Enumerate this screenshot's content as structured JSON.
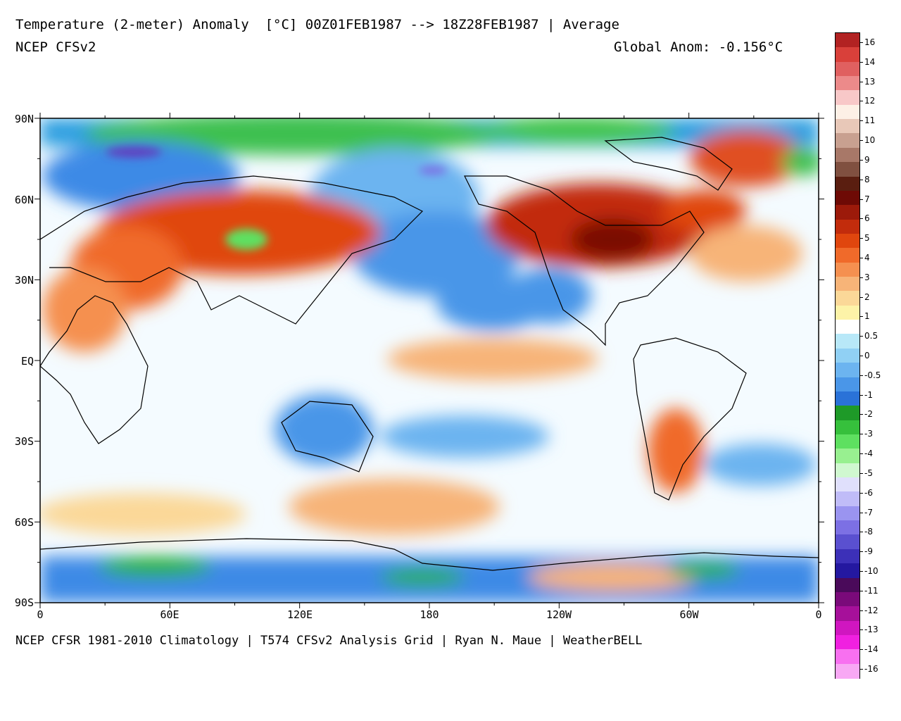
{
  "header": {
    "title": "Temperature (2-meter) Anomaly  [°C] 00Z01FEB1987 --> 18Z28FEB1987 | Average",
    "model": "NCEP CFSv2",
    "global_anom": "Global Anom: -0.156°C"
  },
  "footer": {
    "credit": "NCEP CFSR 1981-2010 Climatology | T574 CFSv2 Analysis Grid | Ryan N. Maue | WeatherBELL"
  },
  "map": {
    "lat_labels": [
      "90N",
      "60N",
      "30N",
      "EQ",
      "30S",
      "60S",
      "90S"
    ],
    "lon_labels": [
      "0",
      "60E",
      "120E",
      "180",
      "120W",
      "60W",
      "0"
    ]
  },
  "colorbar": {
    "labels": [
      "16",
      "14",
      "13",
      "12",
      "11",
      "10",
      "9",
      "8",
      "7",
      "6",
      "5",
      "4",
      "3",
      "2",
      "1",
      "0.5",
      "0",
      "-0.5",
      "-1",
      "-2",
      "-3",
      "-4",
      "-5",
      "-6",
      "-7",
      "-8",
      "-9",
      "-10",
      "-11",
      "-12",
      "-13",
      "-14",
      "-16"
    ],
    "colors": [
      "#b22222",
      "#d9403a",
      "#e06060",
      "#ec8a8a",
      "#f8c8c8",
      "#fdf0e6",
      "#e8c8b8",
      "#c8a090",
      "#a87868",
      "#805040",
      "#5a1e10",
      "#6e0a05",
      "#9c1a0a",
      "#c22c0c",
      "#e0460e",
      "#f06a2a",
      "#f59050",
      "#f7b478",
      "#fbd898",
      "#fdf3a8",
      "#ffffff",
      "#b8e8f8",
      "#90d0f4",
      "#6cb4f0",
      "#4a96e8",
      "#2a72d8",
      "#1e9a28",
      "#36c03c",
      "#5ee060",
      "#98f090",
      "#d0f8d0",
      "#e0e0fc",
      "#c0bcf8",
      "#9a94f0",
      "#7c70e4",
      "#5a50d0",
      "#3c30b8",
      "#2418a0",
      "#4a0a5a",
      "#7a0a7a",
      "#a6109a",
      "#d016c0",
      "#f020e0",
      "#f870f0",
      "#f8a8f4"
    ]
  }
}
